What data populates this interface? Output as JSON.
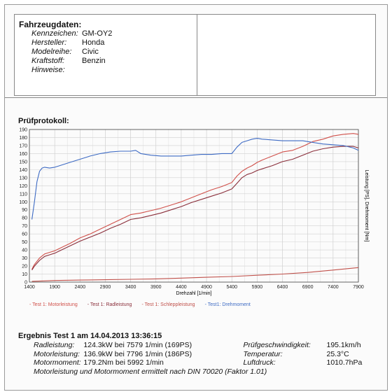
{
  "vehicle": {
    "title": "Fahrzeugdaten:",
    "fields": [
      {
        "label": "Kennzeichen:",
        "value": "GM-OY2"
      },
      {
        "label": "Hersteller:",
        "value": "Honda"
      },
      {
        "label": "Modelreihe:",
        "value": "Civic"
      },
      {
        "label": "Kraftstoff:",
        "value": "Benzin"
      },
      {
        "label": "Hinweise:",
        "value": ""
      }
    ]
  },
  "protocol": {
    "title": "Prüfprotokoll:"
  },
  "chart_data": {
    "type": "line",
    "title": "",
    "xlabel": "Drehzahl [1/min]",
    "ylabel": "Leistung [PS], Drehmoment [Nm]",
    "xlim": [
      1400,
      7900
    ],
    "ylim": [
      0,
      190
    ],
    "xticks": [
      1400,
      1900,
      2400,
      2900,
      3400,
      3900,
      4400,
      4900,
      5400,
      5900,
      6400,
      6900,
      7400,
      7900
    ],
    "yticks": [
      0,
      10,
      20,
      30,
      40,
      50,
      60,
      70,
      80,
      90,
      100,
      110,
      120,
      130,
      140,
      150,
      160,
      170,
      180,
      190
    ],
    "grid": true,
    "legend_position": "bottom",
    "series": [
      {
        "name": "- Test 1: Motorleistung",
        "color": "#d0504a",
        "x": [
          1450,
          1500,
          1600,
          1700,
          1800,
          1900,
          2000,
          2200,
          2400,
          2600,
          2800,
          3000,
          3200,
          3400,
          3600,
          3800,
          4000,
          4200,
          4400,
          4600,
          4800,
          5000,
          5200,
          5400,
          5500,
          5600,
          5700,
          5800,
          5900,
          6000,
          6200,
          6400,
          6600,
          6800,
          7000,
          7200,
          7400,
          7600,
          7800,
          7900
        ],
        "y": [
          16,
          22,
          30,
          35,
          37,
          39,
          42,
          48,
          55,
          60,
          66,
          72,
          78,
          84,
          86,
          89,
          92,
          96,
          100,
          105,
          110,
          115,
          119,
          124,
          132,
          138,
          142,
          145,
          149,
          152,
          157,
          162,
          164,
          169,
          175,
          178,
          182,
          184,
          185,
          184
        ]
      },
      {
        "name": "- Test 1: Radleistung",
        "color": "#8a2e3a",
        "x": [
          1450,
          1500,
          1600,
          1700,
          1800,
          1900,
          2000,
          2200,
          2400,
          2600,
          2800,
          3000,
          3200,
          3400,
          3600,
          3800,
          4000,
          4200,
          4400,
          4600,
          4800,
          5000,
          5200,
          5400,
          5500,
          5600,
          5700,
          5800,
          5900,
          6000,
          6200,
          6400,
          6600,
          6800,
          7000,
          7200,
          7400,
          7600,
          7800,
          7900
        ],
        "y": [
          15,
          20,
          27,
          32,
          34,
          36,
          39,
          45,
          51,
          56,
          61,
          67,
          72,
          78,
          80,
          83,
          86,
          90,
          94,
          99,
          103,
          107,
          111,
          116,
          123,
          130,
          134,
          136,
          139,
          141,
          145,
          150,
          153,
          158,
          163,
          166,
          168,
          169,
          169,
          167
        ]
      },
      {
        "name": "- Test 1: Schleppleistung",
        "color": "#c0504a",
        "x": [
          1450,
          1900,
          2400,
          2900,
          3400,
          3900,
          4400,
          4900,
          5400,
          5900,
          6400,
          6900,
          7400,
          7900
        ],
        "y": [
          1,
          2,
          2.5,
          3,
          3.5,
          4,
          5,
          6,
          7,
          8.5,
          10,
          12,
          15,
          18
        ]
      },
      {
        "name": "- Test1: Drehmoment",
        "color": "#3e6bc4",
        "x": [
          1450,
          1500,
          1550,
          1600,
          1650,
          1700,
          1800,
          1900,
          2000,
          2200,
          2400,
          2600,
          2800,
          3000,
          3200,
          3400,
          3500,
          3600,
          3800,
          4000,
          4200,
          4400,
          4600,
          4800,
          5000,
          5200,
          5400,
          5500,
          5600,
          5700,
          5800,
          5900,
          6000,
          6200,
          6400,
          6600,
          6800,
          7000,
          7200,
          7400,
          7600,
          7800,
          7900
        ],
        "y": [
          78,
          100,
          125,
          138,
          142,
          143,
          142,
          143,
          145,
          149,
          153,
          157,
          160,
          162,
          163,
          163,
          164,
          160,
          158,
          157,
          157,
          157,
          158,
          159,
          159,
          160,
          160,
          168,
          174,
          176,
          178,
          179,
          178,
          177,
          176,
          176,
          176,
          174,
          172,
          171,
          170,
          167,
          164
        ]
      }
    ]
  },
  "results": {
    "title": "Ergebnis Test 1 am 14.04.2013 13:36:15",
    "rows": [
      {
        "label": "Radleistung:",
        "value": "124.3kW  bei 7579 1/min (169PS)",
        "label2": "Prüfgeschwindigkeit:",
        "value2": "195.1km/h"
      },
      {
        "label": "Motorleistung:",
        "value": "136.9kW  bei 7796 1/min (186PS)",
        "label2": "Temperatur:",
        "value2": "25.3°C"
      },
      {
        "label": "Motormoment:",
        "value": "179.2Nm  bei 5992 1/min",
        "label2": "Luftdruck:",
        "value2": "1010.7hPa"
      }
    ],
    "note": "Motorleistung und Motormoment ermittelt nach DIN 70020 (Faktor 1.01)"
  }
}
